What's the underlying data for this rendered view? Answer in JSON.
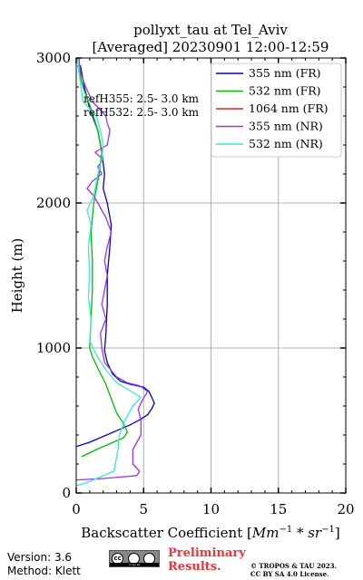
{
  "chart_data": {
    "type": "line",
    "title_line1": "pollyxt_tau at Tel_Aviv",
    "title_line2": "[Averaged] 20230901 12:00-12:59",
    "xlabel_prefix": "Backscatter Coefficient [",
    "xlabel_math": "Mm",
    "xlabel_exp1": "−1",
    "xlabel_mid": " * sr",
    "xlabel_exp2": "−1",
    "xlabel_suffix": "]",
    "ylabel": "Height (m)",
    "xlim": [
      0,
      20
    ],
    "ylim": [
      0,
      3000
    ],
    "xticks": [
      "0",
      "5",
      "10",
      "15",
      "20"
    ],
    "yticks": [
      "0",
      "1000",
      "2000",
      "3000"
    ],
    "grid": true,
    "legend_position": "top-right",
    "annotation_line1": "refH355:  2.5- 3.0 km",
    "annotation_line2": "refH532:  2.5- 3.0 km",
    "series": [
      {
        "name": "355 nm (FR)",
        "color": "#0000cc",
        "points": [
          [
            0,
            320
          ],
          [
            1.0,
            350
          ],
          [
            2.0,
            390
          ],
          [
            3.0,
            430
          ],
          [
            4.0,
            470
          ],
          [
            4.8,
            510
          ],
          [
            5.3,
            540
          ],
          [
            5.6,
            580
          ],
          [
            5.8,
            620
          ],
          [
            5.6,
            660
          ],
          [
            5.4,
            700
          ],
          [
            5.0,
            730
          ],
          [
            4.0,
            750
          ],
          [
            3.3,
            770
          ],
          [
            2.7,
            820
          ],
          [
            2.3,
            900
          ],
          [
            2.1,
            980
          ],
          [
            2.2,
            1100
          ],
          [
            2.3,
            1300
          ],
          [
            2.3,
            1500
          ],
          [
            2.5,
            1700
          ],
          [
            2.6,
            1850
          ],
          [
            2.3,
            2000
          ],
          [
            2.0,
            2100
          ],
          [
            2.1,
            2200
          ],
          [
            1.9,
            2350
          ],
          [
            1.6,
            2500
          ],
          [
            1.0,
            2650
          ],
          [
            0.6,
            2800
          ],
          [
            0.3,
            2950
          ]
        ]
      },
      {
        "name": "532 nm (FR)",
        "color": "#00bb00",
        "points": [
          [
            0.4,
            250
          ],
          [
            1.5,
            300
          ],
          [
            2.5,
            340
          ],
          [
            3.5,
            380
          ],
          [
            3.8,
            420
          ],
          [
            3.5,
            480
          ],
          [
            3.0,
            550
          ],
          [
            2.6,
            650
          ],
          [
            2.2,
            750
          ],
          [
            1.6,
            860
          ],
          [
            1.2,
            940
          ],
          [
            1.0,
            1000
          ],
          [
            1.1,
            1200
          ],
          [
            1.2,
            1400
          ],
          [
            1.2,
            1600
          ],
          [
            1.1,
            1800
          ],
          [
            1.3,
            2000
          ],
          [
            1.7,
            2200
          ],
          [
            1.9,
            2350
          ],
          [
            1.6,
            2500
          ],
          [
            1.1,
            2650
          ],
          [
            0.5,
            2800
          ],
          [
            0.1,
            2950
          ]
        ]
      },
      {
        "name": "1064 nm (FR)",
        "color": "#dd2222",
        "points": []
      },
      {
        "name": "355 nm (NR)",
        "color": "#9933ee",
        "points": [
          [
            0,
            90
          ],
          [
            2.0,
            100
          ],
          [
            4.5,
            120
          ],
          [
            4.7,
            150
          ],
          [
            4.2,
            200
          ],
          [
            4.2,
            300
          ],
          [
            4.8,
            400
          ],
          [
            4.8,
            500
          ],
          [
            4.6,
            580
          ],
          [
            4.9,
            640
          ],
          [
            5.3,
            700
          ],
          [
            4.7,
            740
          ],
          [
            3.8,
            760
          ],
          [
            3.0,
            800
          ],
          [
            2.1,
            900
          ],
          [
            1.9,
            1000
          ],
          [
            1.8,
            1100
          ],
          [
            2.2,
            1200
          ],
          [
            1.9,
            1300
          ],
          [
            2.3,
            1500
          ],
          [
            2.1,
            1600
          ],
          [
            2.3,
            1700
          ],
          [
            2.6,
            1800
          ],
          [
            2.2,
            1900
          ],
          [
            1.9,
            1950
          ],
          [
            1.3,
            2050
          ],
          [
            0.8,
            2100
          ],
          [
            1.2,
            2150
          ],
          [
            1.9,
            2200
          ],
          [
            1.6,
            2250
          ],
          [
            2.0,
            2300
          ],
          [
            1.4,
            2350
          ],
          [
            2.3,
            2400
          ],
          [
            2.5,
            2500
          ],
          [
            2.3,
            2550
          ],
          [
            2.2,
            2600
          ],
          [
            1.2,
            2700
          ],
          [
            0.7,
            2800
          ],
          [
            0.3,
            2900
          ],
          [
            0.2,
            3000
          ]
        ]
      },
      {
        "name": "532 nm (NR)",
        "color": "#33eecc",
        "points": [
          [
            0,
            50
          ],
          [
            1.0,
            80
          ],
          [
            2.8,
            150
          ],
          [
            3.1,
            300
          ],
          [
            3.2,
            400
          ],
          [
            3.6,
            500
          ],
          [
            4.2,
            600
          ],
          [
            4.8,
            660
          ],
          [
            4.1,
            700
          ],
          [
            3.0,
            760
          ],
          [
            2.2,
            850
          ],
          [
            1.5,
            950
          ],
          [
            1.0,
            1050
          ],
          [
            1.1,
            1200
          ],
          [
            0.9,
            1350
          ],
          [
            1.0,
            1500
          ],
          [
            0.9,
            1700
          ],
          [
            1.1,
            1850
          ],
          [
            0.8,
            1950
          ],
          [
            1.3,
            2050
          ],
          [
            1.6,
            2200
          ],
          [
            1.9,
            2300
          ],
          [
            2.0,
            2400
          ],
          [
            1.8,
            2500
          ],
          [
            1.5,
            2600
          ],
          [
            0.5,
            2700
          ],
          [
            0.2,
            2900
          ],
          [
            0.1,
            3000
          ]
        ]
      }
    ]
  },
  "footer": {
    "version": "Version: 3.6",
    "method": "Method: Klett",
    "preliminary_line1": "Preliminary",
    "preliminary_line2": "Results.",
    "copyright_line1": "© TROPOS & TAU 2023.",
    "copyright_line2": "CC BY SA 4.0 License.",
    "license_badge": "cc by sa",
    "preliminary_color": "#ee3333"
  }
}
